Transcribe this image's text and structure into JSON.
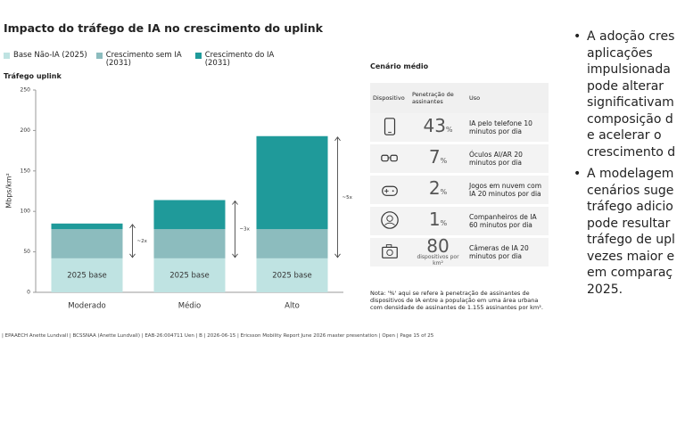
{
  "chart_data": {
    "type": "stacked-bar",
    "title": "Impacto do tráfego de IA no crescimento do uplink",
    "y_title": "Tráfego uplink",
    "y_label": "Mbps/km²",
    "categories": [
      "Moderado",
      "Médio",
      "Alto"
    ],
    "series": [
      {
        "name": "Base Não-IA (2025)",
        "color": "#bfe3e2",
        "values": [
          42,
          42,
          42
        ]
      },
      {
        "name": "Crescimento sem IA (2031)",
        "color": "#8cbcbe",
        "values": [
          36,
          36,
          36
        ]
      },
      {
        "name": "Crescimento do IA (2031)",
        "color": "#1f9a9a",
        "values": [
          7,
          36,
          115
        ]
      }
    ],
    "bar_label": "2025 base",
    "annotations": [
      "~2x",
      "~3x",
      "~5x"
    ],
    "ylim": [
      0,
      250
    ],
    "yticks": [
      0,
      50,
      100,
      150,
      200,
      250
    ]
  },
  "table": {
    "title": "Cenário médio",
    "headers": [
      "Dispositivo",
      "Penetração de assinantes",
      "Uso"
    ],
    "rows": [
      {
        "value": "43",
        "unit": "%",
        "use": "IA pelo telefone 10 minutos por dia"
      },
      {
        "value": "7",
        "unit": "%",
        "use": "Óculos AI/AR 20 minutos por dia"
      },
      {
        "value": "2",
        "unit": "%",
        "use": "Jogos em nuvem com IA 20 minutos por dia"
      },
      {
        "value": "1",
        "unit": "%",
        "use": "Companheiros de IA 60 minutos por dia"
      },
      {
        "value": "80",
        "unit": "dispositivos por km²",
        "use": "Câmeras de IA 20 minutos por dia"
      }
    ],
    "note": "Nota: '%' aqui se refere à penetração de assinantes de dispositivos de IA entre a população em uma área urbana com densidade de assinantes de 1.155 assinantes por km²."
  },
  "sidebar": {
    "bullets": [
      [
        "A adoção cres",
        "aplicações",
        "impulsionada",
        "pode alterar",
        "significativam",
        "composição d",
        "e acelerar o",
        "crescimento d"
      ],
      [
        "A modelagem",
        "cenários suge",
        "tráfego adicio",
        "pode resultar",
        "tráfego de upl",
        "vezes maior e",
        "em comparaç",
        "2025."
      ]
    ]
  },
  "footer": "| EPAAECH Anette Lundvall | BCSSNAA (Anette Lundvall) | EAB-26:004711 Uen | B | 2026-06-15 | Ericsson Mobility Report June 2026 master presentation | Open | Page 15 of 25"
}
